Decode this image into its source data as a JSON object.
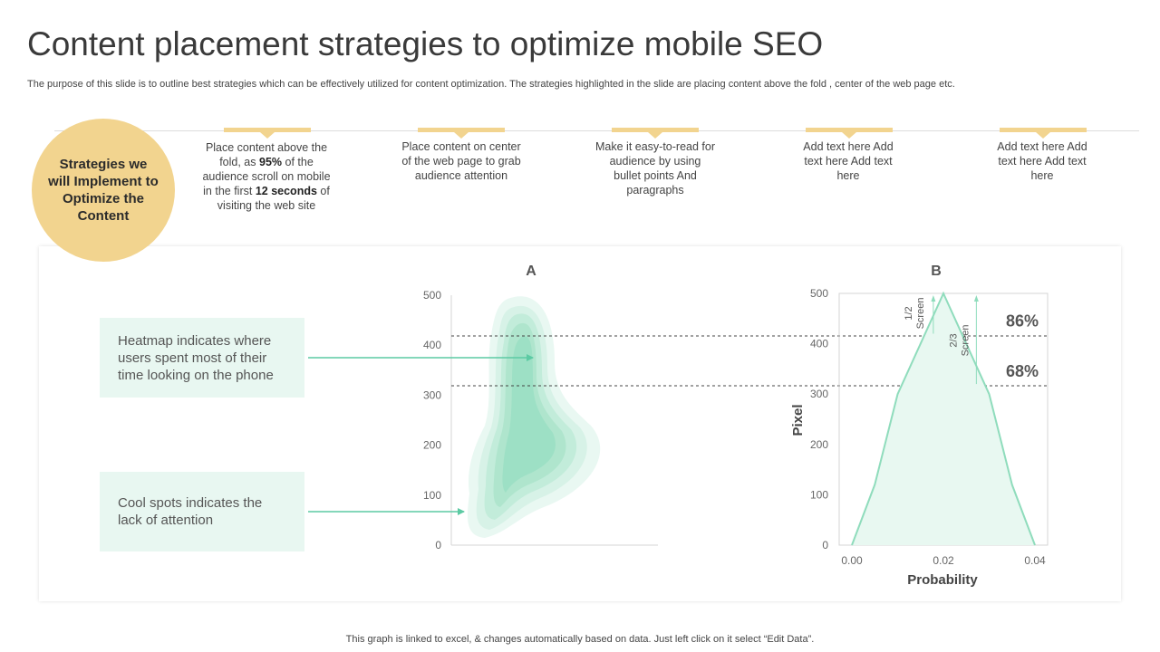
{
  "slide": {
    "title": "Content placement strategies to optimize mobile SEO",
    "subtitle": "The purpose of this slide is to outline best strategies which can be effectively utilized for content optimization. The strategies highlighted in the slide are placing content above the fold , center of the web page etc.",
    "footer": "This graph is linked to excel, & changes automatically based on data. Just left click on it select “Edit Data”."
  },
  "strategies": {
    "heading": "Strategies we will Implement to Optimize the Content",
    "s1": {
      "a": "Place content above the fold, as",
      "pct": "95%",
      "b": "of the audience scroll on mobile in the first",
      "secs": "12 seconds",
      "c": "of visiting the web site"
    },
    "s2": "Place content on center of the web page to grab audience attention",
    "s3": "Make it easy-to-read for audience by using bullet points And paragraphs",
    "s4": "Add text here Add text here Add text here",
    "s5": "Add text here Add text here Add text here"
  },
  "callouts": {
    "heatmap": "Heatmap indicates where users spent most of their time looking on the phone",
    "cool": "Cool spots indicates the lack of attention"
  },
  "colors": {
    "accent_gold": "#f2d48f",
    "mint": "#7fd9b4",
    "callout_bg": "#e8f7f1",
    "arrow": "#5ccaa3"
  },
  "chart_data": [
    {
      "type": "heatmap",
      "title": "A",
      "y_ticks": [
        0,
        100,
        200,
        300,
        400,
        500
      ],
      "ylim": [
        0,
        500
      ],
      "reference_lines_y": [
        320,
        420
      ],
      "heatmap_arrow_y": 372,
      "coolspot_arrow_y": 67
    },
    {
      "type": "area",
      "title": "B",
      "xlabel": "Probability",
      "ylabel": "Pixel",
      "xlim": [
        0,
        0.04
      ],
      "ylim": [
        0,
        500
      ],
      "x_ticks": [
        "0.00",
        "0.02",
        "0.04"
      ],
      "y_ticks": [
        0,
        100,
        200,
        300,
        400,
        500
      ],
      "x": [
        0.0,
        0.005,
        0.01,
        0.02,
        0.03,
        0.035,
        0.04
      ],
      "y": [
        0,
        120,
        300,
        500,
        300,
        120,
        0
      ],
      "reference_lines": [
        {
          "y": 420,
          "label": "86%"
        },
        {
          "y": 320,
          "label": "68%"
        }
      ],
      "screen_markers": [
        {
          "x": 0.0178,
          "label": "1/2 Screen"
        },
        {
          "x": 0.0272,
          "label": "2/3 Screen"
        }
      ]
    }
  ]
}
